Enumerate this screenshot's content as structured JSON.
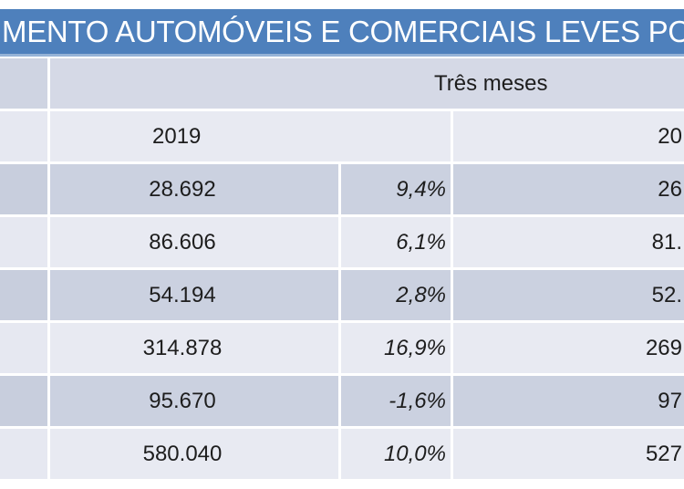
{
  "title": {
    "visible_text": "MENTO AUTOMÓVEIS E COMERCIAIS LEVES PO"
  },
  "table": {
    "period_header": "Três meses",
    "year_left": "2019",
    "year_right_fragment": "20",
    "rows": [
      {
        "value_2019": "28.692",
        "pct_2019": "9,4%",
        "value_2020_fragment": "26"
      },
      {
        "value_2019": "86.606",
        "pct_2019": "6,1%",
        "value_2020_fragment": "81."
      },
      {
        "value_2019": "54.194",
        "pct_2019": "2,8%",
        "value_2020_fragment": "52."
      },
      {
        "value_2019": "314.878",
        "pct_2019": "16,9%",
        "value_2020_fragment": "269"
      },
      {
        "value_2019": "95.670",
        "pct_2019": "-1,6%",
        "value_2020_fragment": "97"
      },
      {
        "value_2019": "580.040",
        "pct_2019": "10,0%",
        "value_2020_fragment": "527"
      }
    ]
  },
  "theme": {
    "accent_blue": "#4e80bc",
    "accent_blue_light": "#96b3d7",
    "hdr_row": "#d5d9e6",
    "hdr_row_left": "#cfd4e2",
    "row_light": "#e8eaf2",
    "row_light_left": "#e6e8f1",
    "row_dark": "#cbd1e0",
    "row_dark_left": "#c8cedd",
    "title_text_color": "#ffffff",
    "body_text_color": "#1d1d1d"
  }
}
